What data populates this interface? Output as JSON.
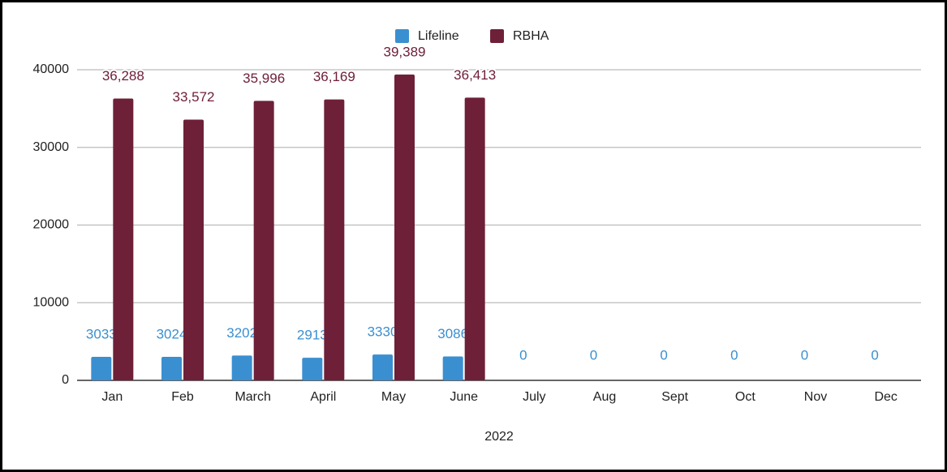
{
  "chart_data": {
    "type": "bar",
    "x_label": "2022",
    "categories": [
      "Jan",
      "Feb",
      "March",
      "April",
      "May",
      "June",
      "July",
      "Aug",
      "Sept",
      "Oct",
      "Nov",
      "Dec"
    ],
    "series": [
      {
        "name": "Lifeline",
        "color": "#3a8fd0",
        "values": [
          3033,
          3024,
          3202,
          2913,
          3330,
          3086,
          0,
          0,
          0,
          0,
          0,
          0
        ]
      },
      {
        "name": "RBHA",
        "color": "#6e2039",
        "values": [
          36288,
          33572,
          35996,
          36169,
          39389,
          36413,
          null,
          null,
          null,
          null,
          null,
          null
        ],
        "value_labels": [
          "36,288",
          "33,572",
          "35,996",
          "36,169",
          "39,389",
          "36,413",
          null,
          null,
          null,
          null,
          null,
          null
        ]
      }
    ],
    "ylim": [
      0,
      40000
    ],
    "yticks": [
      0,
      10000,
      20000,
      30000,
      40000
    ],
    "grid": true,
    "legend": "top"
  }
}
